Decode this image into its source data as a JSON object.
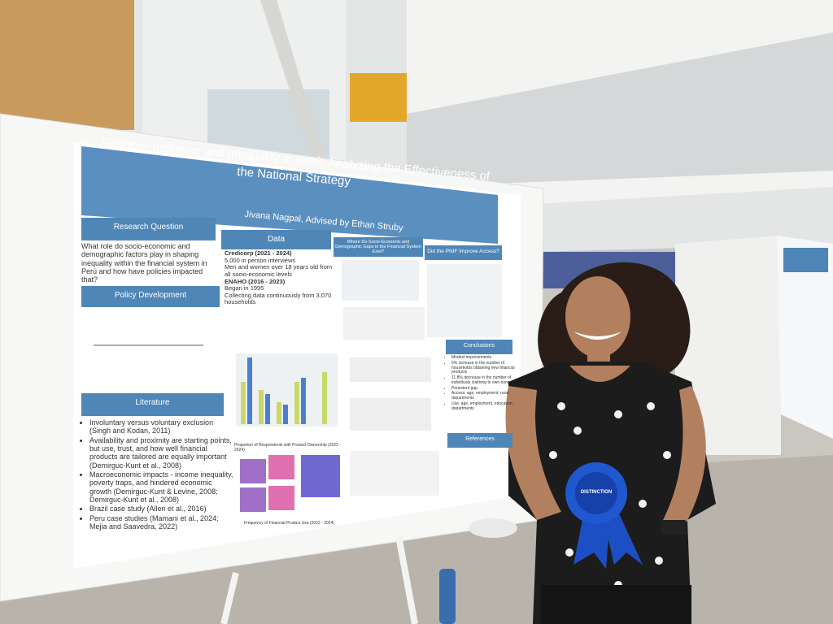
{
  "poster": {
    "title": "Financial Inclusion and Inequality in Perú: Analyzing the Effectiveness of the National Strategy",
    "author": "Jivana Nagpal, Advised by Ethan Struby",
    "research_question": {
      "heading": "Research Question",
      "text": "What role do socio-economic and demographic factors play in shaping inequality within the financial system in Perú and how have policies impacted that?"
    },
    "policy_development": {
      "heading": "Policy Development"
    },
    "literature": {
      "heading": "Literature",
      "items": [
        "Involuntary versus voluntary exclusion (Singh and Kodan, 2011)",
        "Availability and proximity are starting points, but use, trust, and how well financial products are tailored are equally important (Demirguc-Kunt et al., 2008)",
        "Macroeconomic impacts - income inequality, poverty traps, and hindered economic growth (Demirguc-Kunt & Levine, 2008; Demirguc-Kunt et al., 2008)",
        "Brazil case study (Allen et al., 2016)",
        "Peru case studies (Mamani et al., 2024; Mejia and Saavedra, 2022)"
      ]
    },
    "data": {
      "heading": "Data",
      "sources": [
        {
          "name": "Credicorp (2021 - 2024)",
          "items": [
            "5,000 in person interviews",
            "Men and women over 18 years old from all socio-economic levels"
          ]
        },
        {
          "name": "ENAHO (2016 - 2023)",
          "items": [
            "Began in 1995",
            "Collecting data continuously from 3,070 households"
          ]
        }
      ]
    },
    "gaps": {
      "heading": "Where Do Socio-Economic and Demographic Gaps in the Financial System Exist?"
    },
    "pnif": {
      "heading": "Did the PNIF Improve Access?"
    },
    "conclusions": {
      "heading": "Conclusions",
      "items": [
        "Modest improvements",
        "6% increase in the number of households obtaining new financial products",
        "11.8% decrease in the number of individuals claiming to own none",
        "Persistent gap",
        "Access: age, employment, rural, departments",
        "Use: age, employment, education, departments"
      ]
    },
    "references": {
      "heading": "References"
    },
    "captions": [
      "Proportion of Respondents with Product Ownership (2022 - 2024)",
      "Frequency of Financial Product Use (2022 - 2024)"
    ]
  },
  "ribbon": {
    "label": "DISTINCTION"
  }
}
